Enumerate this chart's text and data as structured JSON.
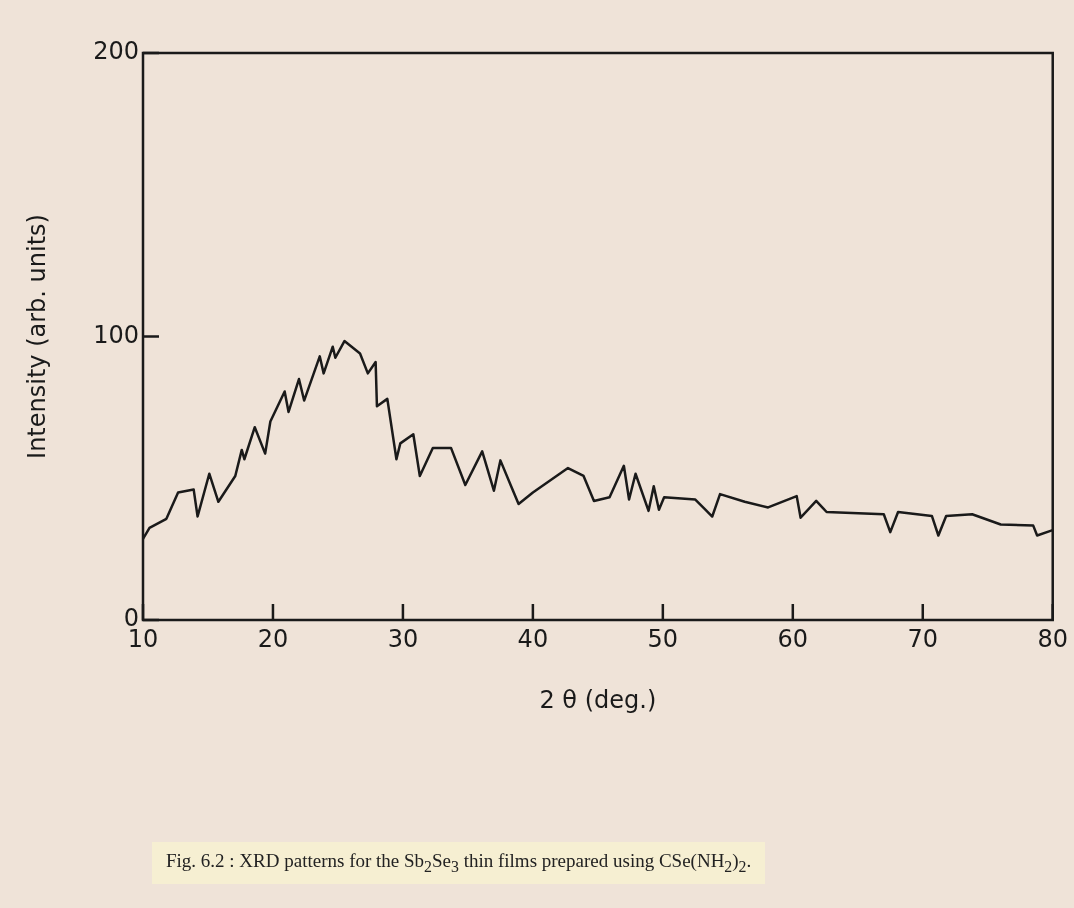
{
  "chart_data": {
    "type": "line",
    "xlabel": "2 θ (deg.)",
    "ylabel": "Intensity (arb. units)",
    "annotations": [
      "Fig. 6.2 : XRD patterns for the Sb$_{2}$Se$_{3}$ thin films prepared using CSe(NH$_{2}$)$_{2}$."
    ],
    "xlim": [
      10,
      80
    ],
    "xticks": [
      10,
      20,
      30,
      40,
      50,
      60,
      70,
      80
    ],
    "ylim": [
      0,
      200
    ],
    "yticks": [
      0,
      100,
      200
    ],
    "grid": false,
    "legend": false,
    "marker": "none",
    "line_style": "solid",
    "x": [
      10,
      10.5,
      11.8,
      12.7,
      13.9,
      14.2,
      15.1,
      15.8,
      17.1,
      17.6,
      17.8,
      18.6,
      19.4,
      19.8,
      20.9,
      21.2,
      22,
      22.4,
      23.6,
      23.9,
      24.6,
      24.8,
      25.5,
      26.7,
      27.3,
      27.9,
      28,
      28.8,
      29.5,
      29.8,
      30.8,
      31.3,
      32.3,
      33.7,
      34.8,
      36.1,
      37,
      37.5,
      38.9,
      40,
      42.7,
      43.9,
      44.7,
      45.9,
      47,
      47.4,
      47.9,
      48.9,
      49.3,
      49.7,
      50.1,
      52.5,
      53.8,
      54.4,
      56.3,
      58.1,
      60.3,
      60.6,
      61.8,
      62.6,
      67,
      67.5,
      68.1,
      70.7,
      71.2,
      71.8,
      73.8,
      76,
      78.5,
      78.8,
      80
    ],
    "series": [
      {
        "color": "#1a1a1a",
        "values": [
          28.6,
          32.5,
          35.7,
          45,
          46,
          36.5,
          51.6,
          41.7,
          50.8,
          60,
          56.7,
          68,
          58.7,
          70,
          80.6,
          73.4,
          85,
          77.4,
          93,
          87,
          96.4,
          92.5,
          98.4,
          94,
          87,
          91,
          75.4,
          78,
          56.7,
          62.3,
          65.5,
          50.8,
          60.7,
          60.7,
          47.6,
          59.5,
          45.6,
          56.3,
          40.9,
          45,
          53.6,
          50.8,
          42,
          43.3,
          54.4,
          42.5,
          51.6,
          38.5,
          47.2,
          38.9,
          43.3,
          42.5,
          36.5,
          44.4,
          41.7,
          39.7,
          43.7,
          36.1,
          42,
          38.1,
          37.3,
          31,
          38.1,
          36.7,
          29.8,
          36.7,
          37.3,
          33.7,
          33.3,
          29.8,
          31.7
        ]
      }
    ]
  }
}
